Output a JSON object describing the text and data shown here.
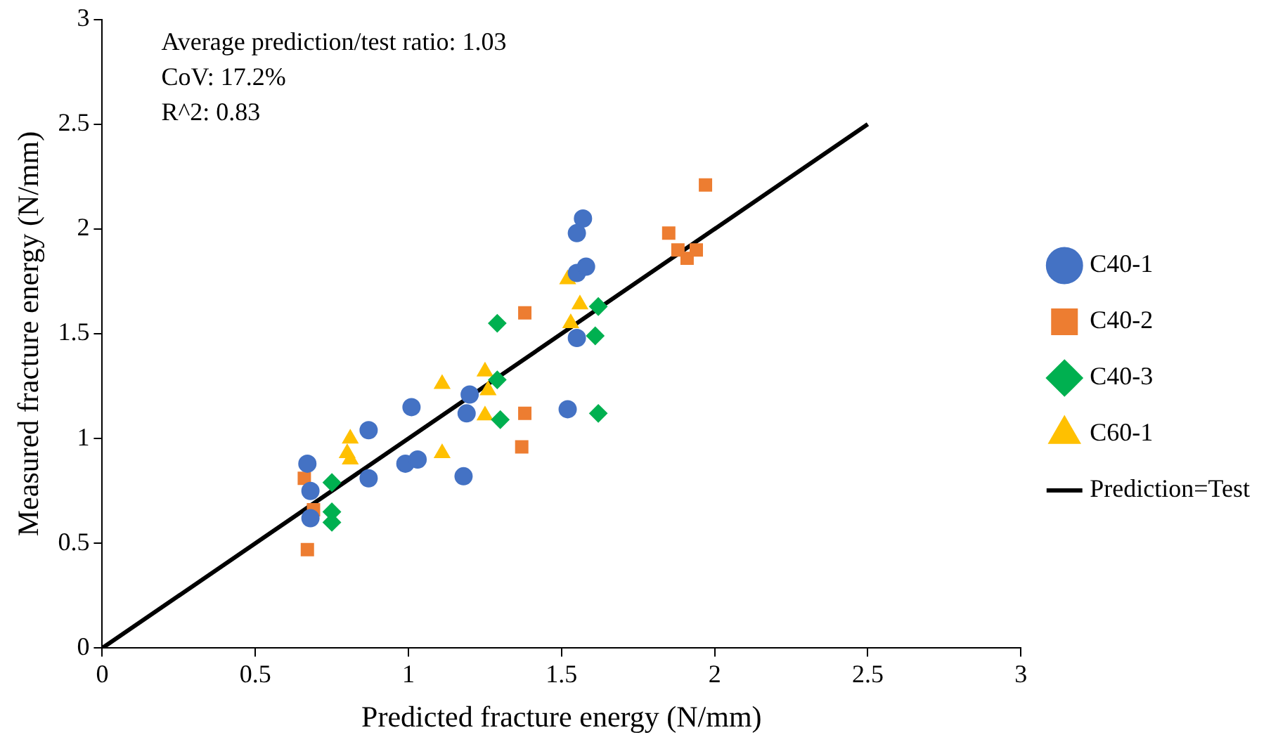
{
  "chart_data": {
    "type": "scatter",
    "xlabel": "Predicted fracture energy (N/mm)",
    "ylabel": "Measured fracture energy (N/mm)",
    "xlim": [
      0,
      3
    ],
    "xticks": [
      0,
      0.5,
      1,
      1.5,
      2,
      2.5,
      3
    ],
    "ylim": [
      0,
      3
    ],
    "yticks": [
      0,
      0.5,
      1,
      1.5,
      2,
      2.5,
      3
    ],
    "grid": false,
    "legend": "right",
    "annotations": [
      "Average prediction/test ratio: 1.03",
      "CoV: 17.2%",
      "R^2: 0.83"
    ],
    "series": [
      {
        "name": "C40-1",
        "color": "#4472c4",
        "marker": "circle",
        "x": [
          0.67,
          0.68,
          0.68,
          0.87,
          0.87,
          1.01,
          0.99,
          1.03,
          1.18,
          1.19,
          1.2,
          1.52,
          1.55,
          1.55,
          1.57,
          1.55,
          1.58
        ],
        "values": [
          0.88,
          0.75,
          0.62,
          1.04,
          0.81,
          1.15,
          0.88,
          0.9,
          0.82,
          1.12,
          1.21,
          1.14,
          1.48,
          1.98,
          2.05,
          1.79,
          1.82
        ]
      },
      {
        "name": "C40-2",
        "color": "#ed7d31",
        "marker": "square",
        "x": [
          0.66,
          0.67,
          0.69,
          1.37,
          1.38,
          1.38,
          1.85,
          1.88,
          1.91,
          1.94,
          1.97
        ],
        "values": [
          0.81,
          0.47,
          0.66,
          0.96,
          1.12,
          1.6,
          1.98,
          1.9,
          1.86,
          1.9,
          2.21
        ]
      },
      {
        "name": "C40-3",
        "color": "#00b050",
        "marker": "diamond",
        "x": [
          0.75,
          0.75,
          0.75,
          1.29,
          1.29,
          1.3,
          1.61,
          1.62,
          1.62
        ],
        "values": [
          0.79,
          0.65,
          0.6,
          1.55,
          1.28,
          1.09,
          1.49,
          1.63,
          1.12
        ]
      },
      {
        "name": "C60-1",
        "color": "#ffc000",
        "marker": "triangle",
        "x": [
          0.81,
          0.81,
          0.8,
          1.11,
          1.11,
          1.25,
          1.26,
          1.25,
          1.52,
          1.56,
          1.53
        ],
        "values": [
          1.0,
          0.9,
          0.93,
          1.26,
          0.93,
          1.32,
          1.23,
          1.11,
          1.76,
          1.64,
          1.55
        ]
      },
      {
        "name": "Prediction=Test",
        "type": "line",
        "color": "#000000",
        "marker": "none",
        "x": [
          0,
          2.5
        ],
        "values": [
          0,
          2.5
        ]
      }
    ]
  }
}
